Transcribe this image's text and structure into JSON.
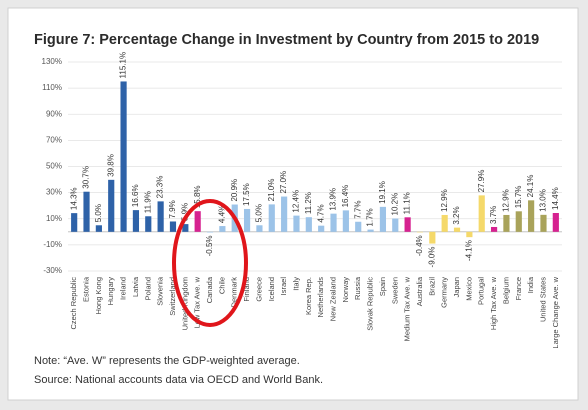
{
  "chart_data": {
    "type": "bar",
    "title": "Figure 7: Percentage Change in Investment by Country from 2015 to 2019",
    "categories": [
      "Czech Republic",
      "Estonia",
      "Hong Kong",
      "Hungary",
      "Ireland",
      "Latvia",
      "Poland",
      "Slovenia",
      "Switzerland",
      "United Kingdom",
      "Low Tax Ave. w",
      "Canada",
      "Chile",
      "Denmark",
      "Finland",
      "Greece",
      "Iceland",
      "Israel",
      "Italy",
      "Korea Rep.",
      "Netherlands",
      "New Zealand",
      "Norway",
      "Russia",
      "Slovak Republic",
      "Spain",
      "Sweden",
      "Medium Tax Ave. w",
      "Australia",
      "Brazil",
      "Germany",
      "Japan",
      "Mexico",
      "Portugal",
      "High Tax Ave. w",
      "Belgium",
      "France",
      "India",
      "United States",
      "Large Change Ave. w"
    ],
    "values": [
      14.3,
      30.7,
      5.0,
      39.8,
      115.1,
      16.6,
      11.9,
      23.3,
      7.9,
      5.9,
      15.8,
      -0.5,
      4.4,
      20.9,
      17.5,
      5.0,
      21.0,
      27.0,
      12.4,
      11.2,
      4.7,
      13.9,
      16.4,
      7.7,
      1.7,
      19.1,
      10.2,
      11.1,
      -0.4,
      -9.0,
      12.9,
      3.2,
      -4.1,
      27.9,
      3.7,
      12.9,
      15.7,
      24.1,
      13.0,
      14.4
    ],
    "value_labels": [
      "14.3%",
      "30.7%",
      "5.0%",
      "39.8%",
      "115.1%",
      "16.6%",
      "11.9%",
      "23.3%",
      "7.9%",
      "5.9%",
      "15.8%",
      "-0.5%",
      "4.4%",
      "20.9%",
      "17.5%",
      "5.0%",
      "21.0%",
      "27.0%",
      "12.4%",
      "11.2%",
      "4.7%",
      "13.9%",
      "16.4%",
      "7.7%",
      "1.7%",
      "19.1%",
      "10.2%",
      "11.1%",
      "-0.4%",
      "-9.0%",
      "12.9%",
      "3.2%",
      "-4.1%",
      "27.9%",
      "3.7%",
      "12.9%",
      "15.7%",
      "24.1%",
      "13.0%",
      "14.4%"
    ],
    "colors": [
      "#2e62a8",
      "#2e62a8",
      "#2e62a8",
      "#2e62a8",
      "#2e62a8",
      "#2e62a8",
      "#2e62a8",
      "#2e62a8",
      "#2e62a8",
      "#2e62a8",
      "#d62290",
      "#9cc3e8",
      "#9cc3e8",
      "#9cc3e8",
      "#9cc3e8",
      "#9cc3e8",
      "#9cc3e8",
      "#9cc3e8",
      "#9cc3e8",
      "#9cc3e8",
      "#9cc3e8",
      "#9cc3e8",
      "#9cc3e8",
      "#9cc3e8",
      "#9cc3e8",
      "#9cc3e8",
      "#9cc3e8",
      "#d62290",
      "#f5d96a",
      "#f5d96a",
      "#f5d96a",
      "#f5d96a",
      "#f5d96a",
      "#f5d96a",
      "#d62290",
      "#a9a35a",
      "#a9a35a",
      "#a9a35a",
      "#a9a35a",
      "#d62290"
    ],
    "ylim": [
      -30,
      130
    ],
    "yticks": [
      {
        "value": -30,
        "label": "-30%"
      },
      {
        "value": -10,
        "label": "-10%"
      },
      {
        "value": 10,
        "label": "10%"
      },
      {
        "value": 30,
        "label": "30%"
      },
      {
        "value": 50,
        "label": "50%"
      },
      {
        "value": 70,
        "label": "70%"
      },
      {
        "value": 90,
        "label": "90%"
      },
      {
        "value": 110,
        "label": "110%"
      },
      {
        "value": 130,
        "label": "130%"
      }
    ],
    "grid": true,
    "notes": [
      "Note: “Ave. W” represents the GDP-weighted average.",
      "Source: National accounts data via OECD and World Bank."
    ]
  }
}
